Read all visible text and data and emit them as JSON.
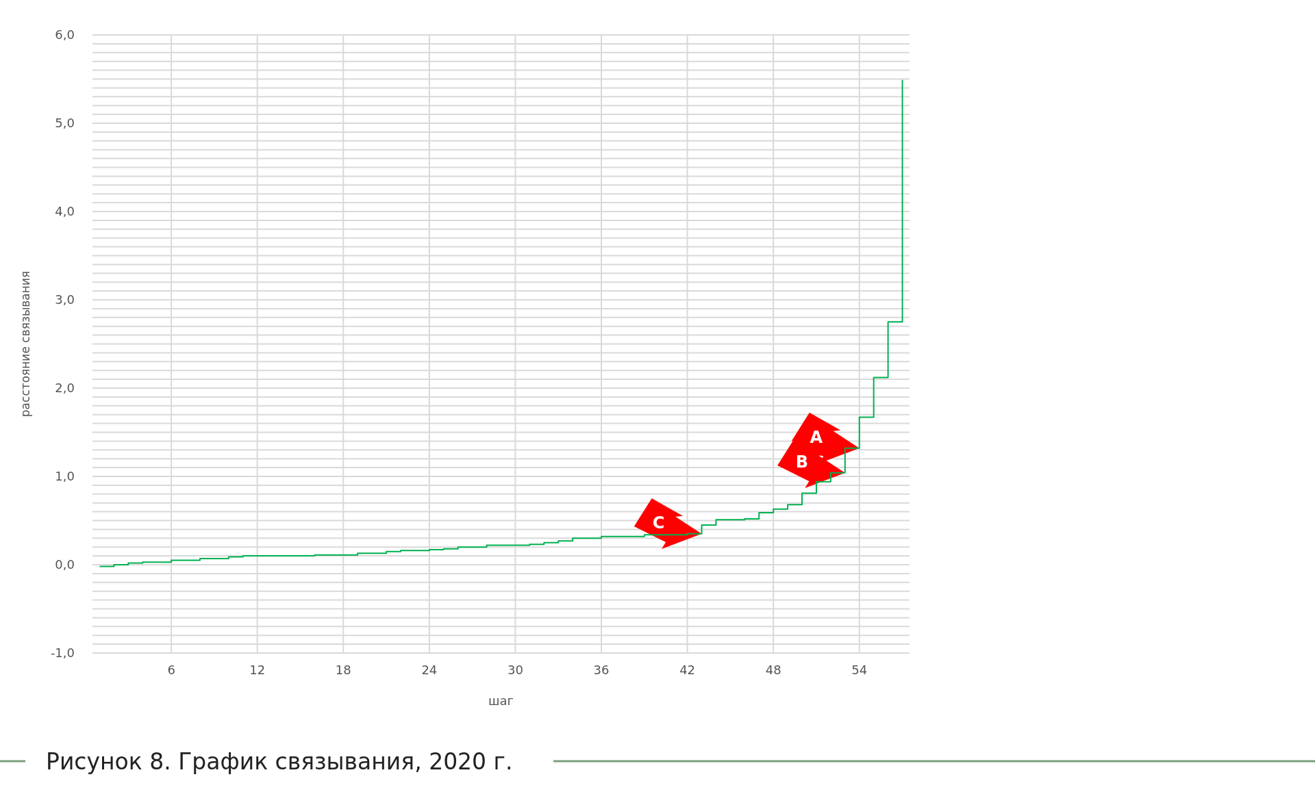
{
  "chart_data": {
    "type": "step",
    "xlabel": "шаг",
    "ylabel": "расстояние связывания",
    "x": [
      1,
      2,
      3,
      4,
      6,
      8,
      10,
      11,
      16,
      19,
      21,
      22,
      24,
      25,
      26,
      28,
      31,
      32,
      33,
      34,
      36,
      39,
      42,
      43,
      44,
      46,
      47,
      48,
      49,
      50,
      51,
      52,
      53,
      54,
      55,
      56,
      57
    ],
    "series": [
      {
        "color": "#00b050",
        "values": [
          -0.02,
          0.0,
          0.02,
          0.03,
          0.05,
          0.07,
          0.09,
          0.1,
          0.11,
          0.13,
          0.15,
          0.16,
          0.17,
          0.18,
          0.2,
          0.22,
          0.23,
          0.25,
          0.27,
          0.3,
          0.32,
          0.34,
          0.35,
          0.45,
          0.51,
          0.52,
          0.59,
          0.63,
          0.68,
          0.81,
          0.94,
          1.04,
          1.32,
          1.67,
          2.12,
          2.75,
          5.49
        ]
      }
    ],
    "xlim": [
      0.5,
      57.5
    ],
    "xticks": [
      6,
      12,
      18,
      24,
      30,
      36,
      42,
      48,
      54
    ],
    "ylim": [
      -1,
      6
    ],
    "yticks": [
      {
        "value": -1,
        "label": "-1,0"
      },
      {
        "value": -0.9,
        "label": null
      },
      {
        "value": -0.8,
        "label": null
      },
      {
        "value": -0.7,
        "label": null
      },
      {
        "value": -0.6,
        "label": null
      },
      {
        "value": -0.5,
        "label": null
      },
      {
        "value": -0.4,
        "label": null
      },
      {
        "value": -0.3,
        "label": null
      },
      {
        "value": -0.2,
        "label": null
      },
      {
        "value": -0.1,
        "label": null
      },
      {
        "value": 0,
        "label": "0,0"
      },
      {
        "value": 0.1,
        "label": null
      },
      {
        "value": 0.2,
        "label": null
      },
      {
        "value": 0.3,
        "label": null
      },
      {
        "value": 0.4,
        "label": null
      },
      {
        "value": 0.5,
        "label": null
      },
      {
        "value": 0.6,
        "label": null
      },
      {
        "value": 0.7,
        "label": null
      },
      {
        "value": 0.8,
        "label": null
      },
      {
        "value": 0.9,
        "label": null
      },
      {
        "value": 1,
        "label": "1,0"
      },
      {
        "value": 1.1,
        "label": null
      },
      {
        "value": 1.2,
        "label": null
      },
      {
        "value": 1.3,
        "label": null
      },
      {
        "value": 1.4,
        "label": null
      },
      {
        "value": 1.5,
        "label": null
      },
      {
        "value": 1.6,
        "label": null
      },
      {
        "value": 1.7,
        "label": null
      },
      {
        "value": 1.8,
        "label": null
      },
      {
        "value": 1.9,
        "label": null
      },
      {
        "value": 2,
        "label": "2,0"
      },
      {
        "value": 2.1,
        "label": null
      },
      {
        "value": 2.2,
        "label": null
      },
      {
        "value": 2.3,
        "label": null
      },
      {
        "value": 2.4,
        "label": null
      },
      {
        "value": 2.5,
        "label": null
      },
      {
        "value": 2.6,
        "label": null
      },
      {
        "value": 2.7,
        "label": null
      },
      {
        "value": 2.8,
        "label": null
      },
      {
        "value": 2.9,
        "label": null
      },
      {
        "value": 3,
        "label": "3,0"
      },
      {
        "value": 3.1,
        "label": null
      },
      {
        "value": 3.2,
        "label": null
      },
      {
        "value": 3.3,
        "label": null
      },
      {
        "value": 3.4,
        "label": null
      },
      {
        "value": 3.5,
        "label": null
      },
      {
        "value": 3.6,
        "label": null
      },
      {
        "value": 3.7,
        "label": null
      },
      {
        "value": 3.8,
        "label": null
      },
      {
        "value": 3.9,
        "label": null
      },
      {
        "value": 4,
        "label": "4,0"
      },
      {
        "value": 4.1,
        "label": null
      },
      {
        "value": 4.2,
        "label": null
      },
      {
        "value": 4.3,
        "label": null
      },
      {
        "value": 4.4,
        "label": null
      },
      {
        "value": 4.5,
        "label": null
      },
      {
        "value": 4.6,
        "label": null
      },
      {
        "value": 4.7,
        "label": null
      },
      {
        "value": 4.8,
        "label": null
      },
      {
        "value": 4.9,
        "label": null
      },
      {
        "value": 5,
        "label": "5,0"
      },
      {
        "value": 5.1,
        "label": null
      },
      {
        "value": 5.2,
        "label": null
      },
      {
        "value": 5.3,
        "label": null
      },
      {
        "value": 5.4,
        "label": null
      },
      {
        "value": 5.5,
        "label": null
      },
      {
        "value": 5.6,
        "label": null
      },
      {
        "value": 5.7,
        "label": null
      },
      {
        "value": 5.8,
        "label": null
      },
      {
        "value": 5.9,
        "label": null
      },
      {
        "value": 6,
        "label": "6,0"
      }
    ],
    "grid": true,
    "marker": "none",
    "line_style": "solid",
    "annotations": [
      {
        "text": "A",
        "x": 54,
        "y": 1.32
      },
      {
        "text": "B",
        "x": 53,
        "y": 1.04
      },
      {
        "text": "C",
        "x": 43,
        "y": 0.35
      },
      "Рисунок 8. График связывания, 2020 г."
    ]
  }
}
